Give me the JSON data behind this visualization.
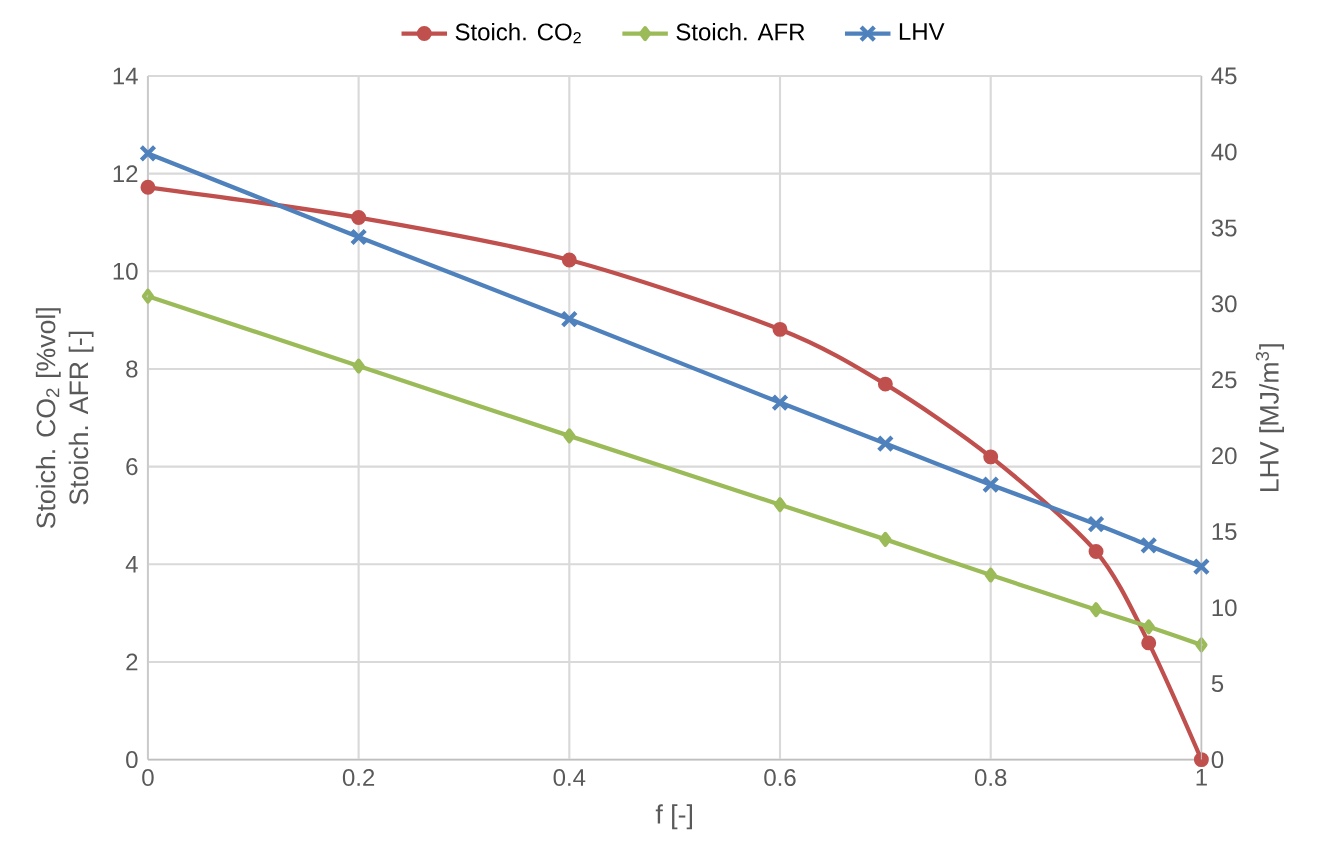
{
  "chart_data": {
    "type": "line",
    "xlabel": "f [-]",
    "ylabel": [
      "Stoich. CO$_{2}$ [%vol]",
      "Stoich. AFR [-]"
    ],
    "y2label": "LHV [MJ/m$^{3}$]",
    "x": [
      0,
      0.2,
      0.4,
      0.6,
      0.7,
      0.8,
      0.9,
      0.95,
      1
    ],
    "series": [
      {
        "name": "Stoich. CO$_{2}$",
        "color": "#c0504d",
        "marker": "circle",
        "values": [
          11.72,
          11.1,
          10.23,
          8.81,
          7.69,
          6.2,
          4.26,
          2.39,
          0
        ]
      },
      {
        "name": "Stoich. AFR",
        "color": "#9bbb59",
        "marker": "diamond",
        "values": [
          9.49,
          8.06,
          6.63,
          5.22,
          4.51,
          3.78,
          3.07,
          2.72,
          2.35
        ]
      },
      {
        "name": "LHV",
        "color": "#4f81bd",
        "marker": "cross",
        "axis": "y2",
        "values": [
          39.9,
          34.4,
          29.0,
          23.5,
          20.8,
          18.1,
          15.5,
          14.1,
          12.7
        ]
      }
    ],
    "xlim": [
      0,
      1
    ],
    "xticks": [
      0,
      0.2,
      0.4,
      0.6,
      0.8,
      1
    ],
    "ylim": [
      0,
      14
    ],
    "yticks": [
      0,
      2,
      4,
      6,
      8,
      10,
      12,
      14
    ],
    "y2lim": [
      0,
      45
    ],
    "y2ticks": [
      0,
      5,
      10,
      15,
      20,
      25,
      30,
      35,
      40,
      45
    ],
    "grid": true,
    "legend": "top",
    "line_style": "solid"
  }
}
